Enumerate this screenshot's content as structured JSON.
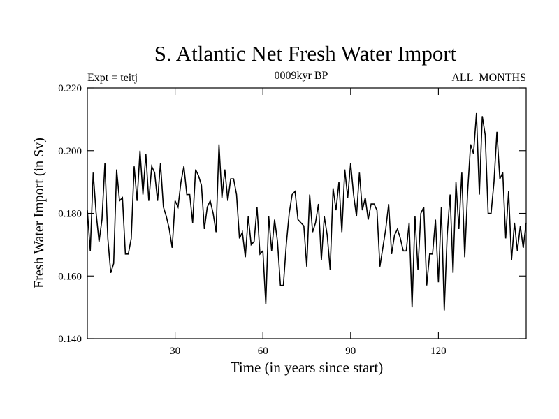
{
  "chart_data": {
    "type": "line",
    "title": "S. Atlantic Net Fresh Water Import",
    "subtitle_left": "Expt = teitj",
    "subtitle_center": "0009kyr BP",
    "subtitle_right": "ALL_MONTHS",
    "xlabel": "Time (in years since start)",
    "ylabel": "Fresh Water Import (in Sv)",
    "xlim": [
      0,
      150
    ],
    "ylim": [
      0.14,
      0.22
    ],
    "xticks": [
      30,
      60,
      90,
      120
    ],
    "xtick_labels": [
      "30",
      "60",
      "90",
      "120"
    ],
    "yticks": [
      0.14,
      0.16,
      0.18,
      0.2,
      0.22
    ],
    "ytick_labels": [
      "0.140",
      "0.160",
      "0.180",
      "0.200",
      "0.220"
    ],
    "series": [
      {
        "name": "S. Atlantic Net Fresh Water Import",
        "color": "#000000",
        "x": [
          0,
          1,
          2,
          3,
          4,
          5,
          6,
          7,
          8,
          9,
          10,
          11,
          12,
          13,
          14,
          15,
          16,
          17,
          18,
          19,
          20,
          21,
          22,
          23,
          24,
          25,
          26,
          27,
          28,
          29,
          30,
          31,
          32,
          33,
          34,
          35,
          36,
          37,
          38,
          39,
          40,
          41,
          42,
          43,
          44,
          45,
          46,
          47,
          48,
          49,
          50,
          51,
          52,
          53,
          54,
          55,
          56,
          57,
          58,
          59,
          60,
          61,
          62,
          63,
          64,
          65,
          66,
          67,
          68,
          69,
          70,
          71,
          72,
          73,
          74,
          75,
          76,
          77,
          78,
          79,
          80,
          81,
          82,
          83,
          84,
          85,
          86,
          87,
          88,
          89,
          90,
          91,
          92,
          93,
          94,
          95,
          96,
          97,
          98,
          99,
          100,
          101,
          102,
          103,
          104,
          105,
          106,
          107,
          108,
          109,
          110,
          111,
          112,
          113,
          114,
          115,
          116,
          117,
          118,
          119,
          120,
          121,
          122,
          123,
          124,
          125,
          126,
          127,
          128,
          129,
          130,
          131,
          132,
          133,
          134,
          135,
          136,
          137,
          138,
          139,
          140,
          141,
          142,
          143,
          144,
          145,
          146,
          147,
          148,
          149,
          150
        ],
        "values": [
          0.181,
          0.168,
          0.193,
          0.18,
          0.171,
          0.178,
          0.196,
          0.172,
          0.161,
          0.164,
          0.194,
          0.184,
          0.185,
          0.167,
          0.167,
          0.172,
          0.195,
          0.184,
          0.2,
          0.186,
          0.199,
          0.184,
          0.195,
          0.193,
          0.184,
          0.196,
          0.182,
          0.179,
          0.175,
          0.169,
          0.184,
          0.182,
          0.19,
          0.195,
          0.186,
          0.186,
          0.177,
          0.194,
          0.192,
          0.189,
          0.175,
          0.182,
          0.184,
          0.18,
          0.174,
          0.202,
          0.185,
          0.194,
          0.184,
          0.191,
          0.191,
          0.186,
          0.172,
          0.174,
          0.166,
          0.179,
          0.17,
          0.171,
          0.182,
          0.167,
          0.168,
          0.151,
          0.179,
          0.168,
          0.178,
          0.171,
          0.157,
          0.157,
          0.17,
          0.18,
          0.186,
          0.187,
          0.178,
          0.177,
          0.176,
          0.163,
          0.186,
          0.174,
          0.177,
          0.183,
          0.165,
          0.179,
          0.173,
          0.162,
          0.188,
          0.181,
          0.19,
          0.174,
          0.194,
          0.185,
          0.196,
          0.186,
          0.179,
          0.193,
          0.181,
          0.185,
          0.178,
          0.183,
          0.183,
          0.181,
          0.163,
          0.169,
          0.175,
          0.183,
          0.167,
          0.173,
          0.175,
          0.172,
          0.168,
          0.168,
          0.177,
          0.15,
          0.179,
          0.162,
          0.18,
          0.182,
          0.157,
          0.167,
          0.167,
          0.178,
          0.158,
          0.182,
          0.149,
          0.173,
          0.186,
          0.161,
          0.19,
          0.175,
          0.193,
          0.166,
          0.187,
          0.202,
          0.199,
          0.212,
          0.186,
          0.211,
          0.205,
          0.18,
          0.18,
          0.19,
          0.206,
          0.191,
          0.193,
          0.172,
          0.187,
          0.165,
          0.177,
          0.168,
          0.176,
          0.169,
          0.177
        ]
      }
    ]
  }
}
